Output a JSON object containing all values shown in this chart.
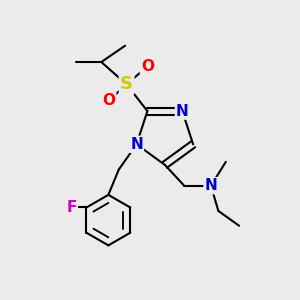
{
  "background_color": "#ebebeb",
  "atom_colors": {
    "C": "#000000",
    "N": "#0000cc",
    "O": "#ff0000",
    "S": "#cccc00",
    "F": "#cc00cc",
    "H": "#000000"
  },
  "bond_color": "#000000",
  "bond_width": 1.5,
  "font_size_atom": 11,
  "font_size_group": 9
}
